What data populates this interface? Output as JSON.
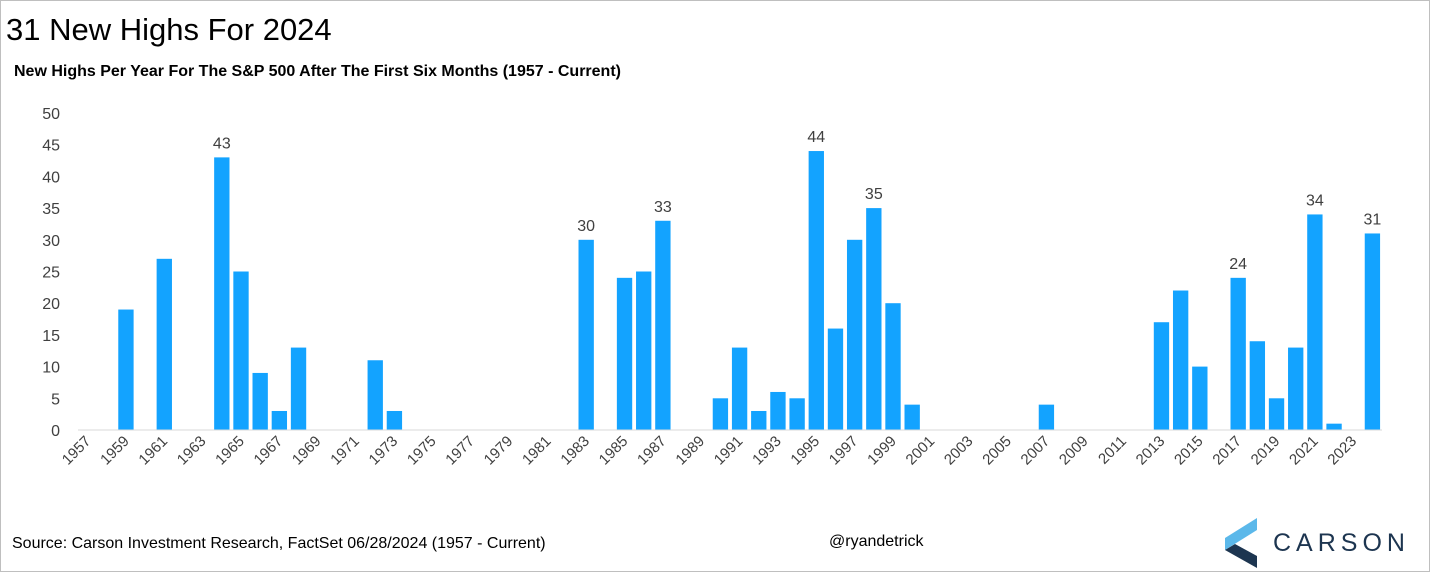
{
  "header": {
    "title": "31 New Highs For 2024",
    "subtitle": "New Highs Per Year For The S&P 500 After The First Six Months (1957 - Current)"
  },
  "footer": {
    "source": "Source: Carson Investment Research, FactSet 06/28/2024 (1957 - Current)",
    "handle": "@ryandetrick",
    "logo_text": "CARSON"
  },
  "colors": {
    "bar": "#13a3ff",
    "logo_light": "#5bb8ea",
    "logo_dark": "#1d3550"
  },
  "chart_data": {
    "type": "bar",
    "title": "New Highs Per Year For The S&P 500 After The First Six Months (1957 - Current)",
    "xlabel": "",
    "ylabel": "",
    "ylim": [
      0,
      50
    ],
    "yticks": [
      0,
      5,
      10,
      15,
      20,
      25,
      30,
      35,
      40,
      45,
      50
    ],
    "grid": false,
    "legend": "none",
    "categories": [
      1957,
      1958,
      1959,
      1960,
      1961,
      1962,
      1963,
      1964,
      1965,
      1966,
      1967,
      1968,
      1969,
      1970,
      1971,
      1972,
      1973,
      1974,
      1975,
      1976,
      1977,
      1978,
      1979,
      1980,
      1981,
      1982,
      1983,
      1984,
      1985,
      1986,
      1987,
      1988,
      1989,
      1990,
      1991,
      1992,
      1993,
      1994,
      1995,
      1996,
      1997,
      1998,
      1999,
      2000,
      2001,
      2002,
      2003,
      2004,
      2005,
      2006,
      2007,
      2008,
      2009,
      2010,
      2011,
      2012,
      2013,
      2014,
      2015,
      2016,
      2017,
      2018,
      2019,
      2020,
      2021,
      2022,
      2023,
      2024
    ],
    "xtick_labels": [
      "1957",
      "1959",
      "1961",
      "1963",
      "1965",
      "1967",
      "1969",
      "1971",
      "1973",
      "1975",
      "1977",
      "1979",
      "1981",
      "1983",
      "1985",
      "1987",
      "1989",
      "1991",
      "1993",
      "1995",
      "1997",
      "1999",
      "2001",
      "2003",
      "2005",
      "2007",
      "2009",
      "2011",
      "2013",
      "2015",
      "2017",
      "2019",
      "2021",
      "2023"
    ],
    "values": [
      0,
      0,
      19,
      0,
      27,
      0,
      0,
      43,
      25,
      9,
      3,
      13,
      0,
      0,
      0,
      11,
      3,
      0,
      0,
      0,
      0,
      0,
      0,
      0,
      0,
      0,
      30,
      0,
      24,
      25,
      33,
      0,
      0,
      5,
      13,
      3,
      6,
      5,
      44,
      16,
      30,
      35,
      20,
      4,
      0,
      0,
      0,
      0,
      0,
      0,
      4,
      0,
      0,
      0,
      0,
      0,
      17,
      22,
      10,
      0,
      24,
      14,
      5,
      13,
      34,
      1,
      0,
      31
    ],
    "data_labels": [
      {
        "year": 1964,
        "text": "43"
      },
      {
        "year": 1983,
        "text": "30"
      },
      {
        "year": 1987,
        "text": "33"
      },
      {
        "year": 1995,
        "text": "44"
      },
      {
        "year": 1998,
        "text": "35"
      },
      {
        "year": 2017,
        "text": "24"
      },
      {
        "year": 2021,
        "text": "34"
      },
      {
        "year": 2024,
        "text": "31"
      }
    ]
  }
}
